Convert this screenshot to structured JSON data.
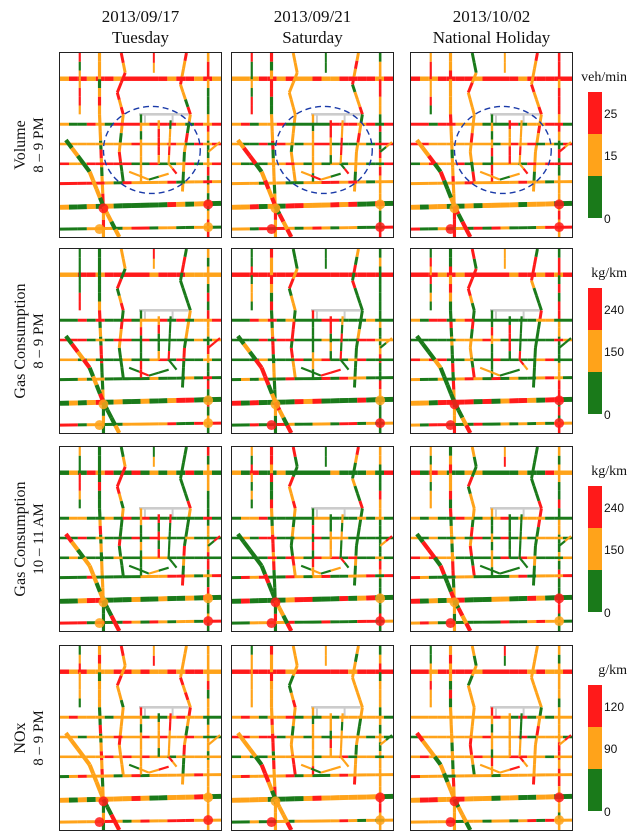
{
  "columns": [
    {
      "date": "2013/09/17",
      "day": "Tuesday"
    },
    {
      "date": "2013/09/21",
      "day": "Saturday"
    },
    {
      "date": "2013/10/02",
      "day": "National Holiday"
    }
  ],
  "rows": [
    {
      "metric": "Volume",
      "time": "8 – 9 PM",
      "unit": "veh/min",
      "ticks": [
        "25",
        "15",
        "0"
      ],
      "highlight": true
    },
    {
      "metric": "Gas Consumption",
      "time": "8 – 9 PM",
      "unit": "kg/km",
      "ticks": [
        "240",
        "150",
        "0"
      ],
      "highlight": false
    },
    {
      "metric": "Gas Consumption",
      "time": "10 – 11 AM",
      "unit": "kg/km",
      "ticks": [
        "240",
        "150",
        "0"
      ],
      "highlight": false
    },
    {
      "metric": "NOx",
      "time": "8 – 9 PM",
      "unit": "g/km",
      "ticks": [
        "120",
        "90",
        "0"
      ],
      "highlight": false
    }
  ],
  "colors": {
    "high": "#ff1a1a",
    "medium": "#ffa31a",
    "low": "#1a7a1a",
    "inactive": "#cccccc",
    "circle": "#1a3aa8"
  }
}
